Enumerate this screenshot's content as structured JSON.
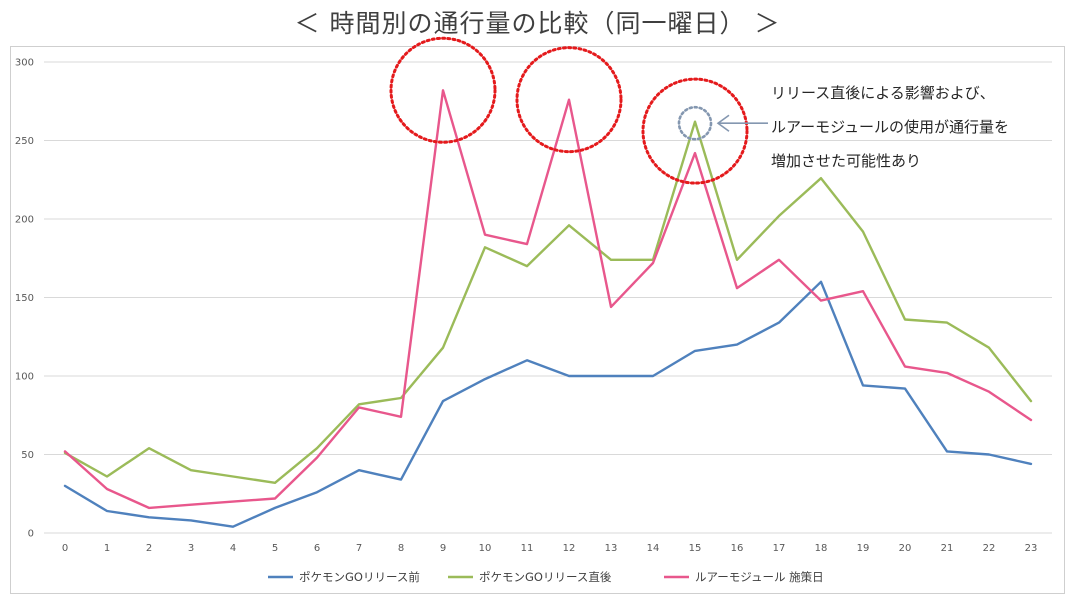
{
  "page": {
    "title": "＜ 時間別の通行量の比較（同一曜日） ＞"
  },
  "chart_data": {
    "type": "line",
    "categories": [
      "0",
      "1",
      "2",
      "3",
      "4",
      "5",
      "6",
      "7",
      "8",
      "9",
      "10",
      "11",
      "12",
      "13",
      "14",
      "15",
      "16",
      "17",
      "18",
      "19",
      "20",
      "21",
      "22",
      "23"
    ],
    "ylim": [
      0,
      300
    ],
    "yticks": [
      0,
      50,
      100,
      150,
      200,
      250,
      300
    ],
    "grid": "horizontal",
    "legend": "bottom-center",
    "series": [
      {
        "name": "ポケモンGOリリース前",
        "color": "#4f81bd",
        "values": [
          30,
          14,
          10,
          8,
          4,
          16,
          26,
          40,
          34,
          84,
          98,
          110,
          100,
          100,
          100,
          116,
          120,
          134,
          160,
          94,
          92,
          52,
          50,
          44
        ]
      },
      {
        "name": "ポケモンGOリリース直後",
        "color": "#9bbb59",
        "values": [
          51,
          36,
          54,
          40,
          36,
          32,
          54,
          82,
          86,
          118,
          182,
          170,
          196,
          174,
          174,
          262,
          174,
          202,
          226,
          192,
          136,
          134,
          118,
          84
        ]
      },
      {
        "name": "ルアーモジュール 施策日",
        "color": "#e8578c",
        "values": [
          52,
          28,
          16,
          18,
          20,
          22,
          48,
          80,
          74,
          282,
          190,
          184,
          276,
          144,
          172,
          242,
          156,
          174,
          148,
          154,
          106,
          102,
          90,
          72
        ]
      }
    ],
    "annotation": {
      "lines": [
        "リリース直後による影響および、",
        "ルアーモジュールの使用が通行量を",
        "増加させた可能性あり"
      ]
    },
    "highlights": [
      {
        "x": 9,
        "y": 282,
        "color": "#e41a1c",
        "style": "dotted"
      },
      {
        "x": 12,
        "y": 276,
        "color": "#e41a1c",
        "style": "dotted"
      },
      {
        "x": 15,
        "y": 256,
        "color": "#e41a1c",
        "style": "dotted"
      },
      {
        "x": 15,
        "y": 261,
        "color": "#8497b0",
        "style": "dotted"
      }
    ]
  }
}
